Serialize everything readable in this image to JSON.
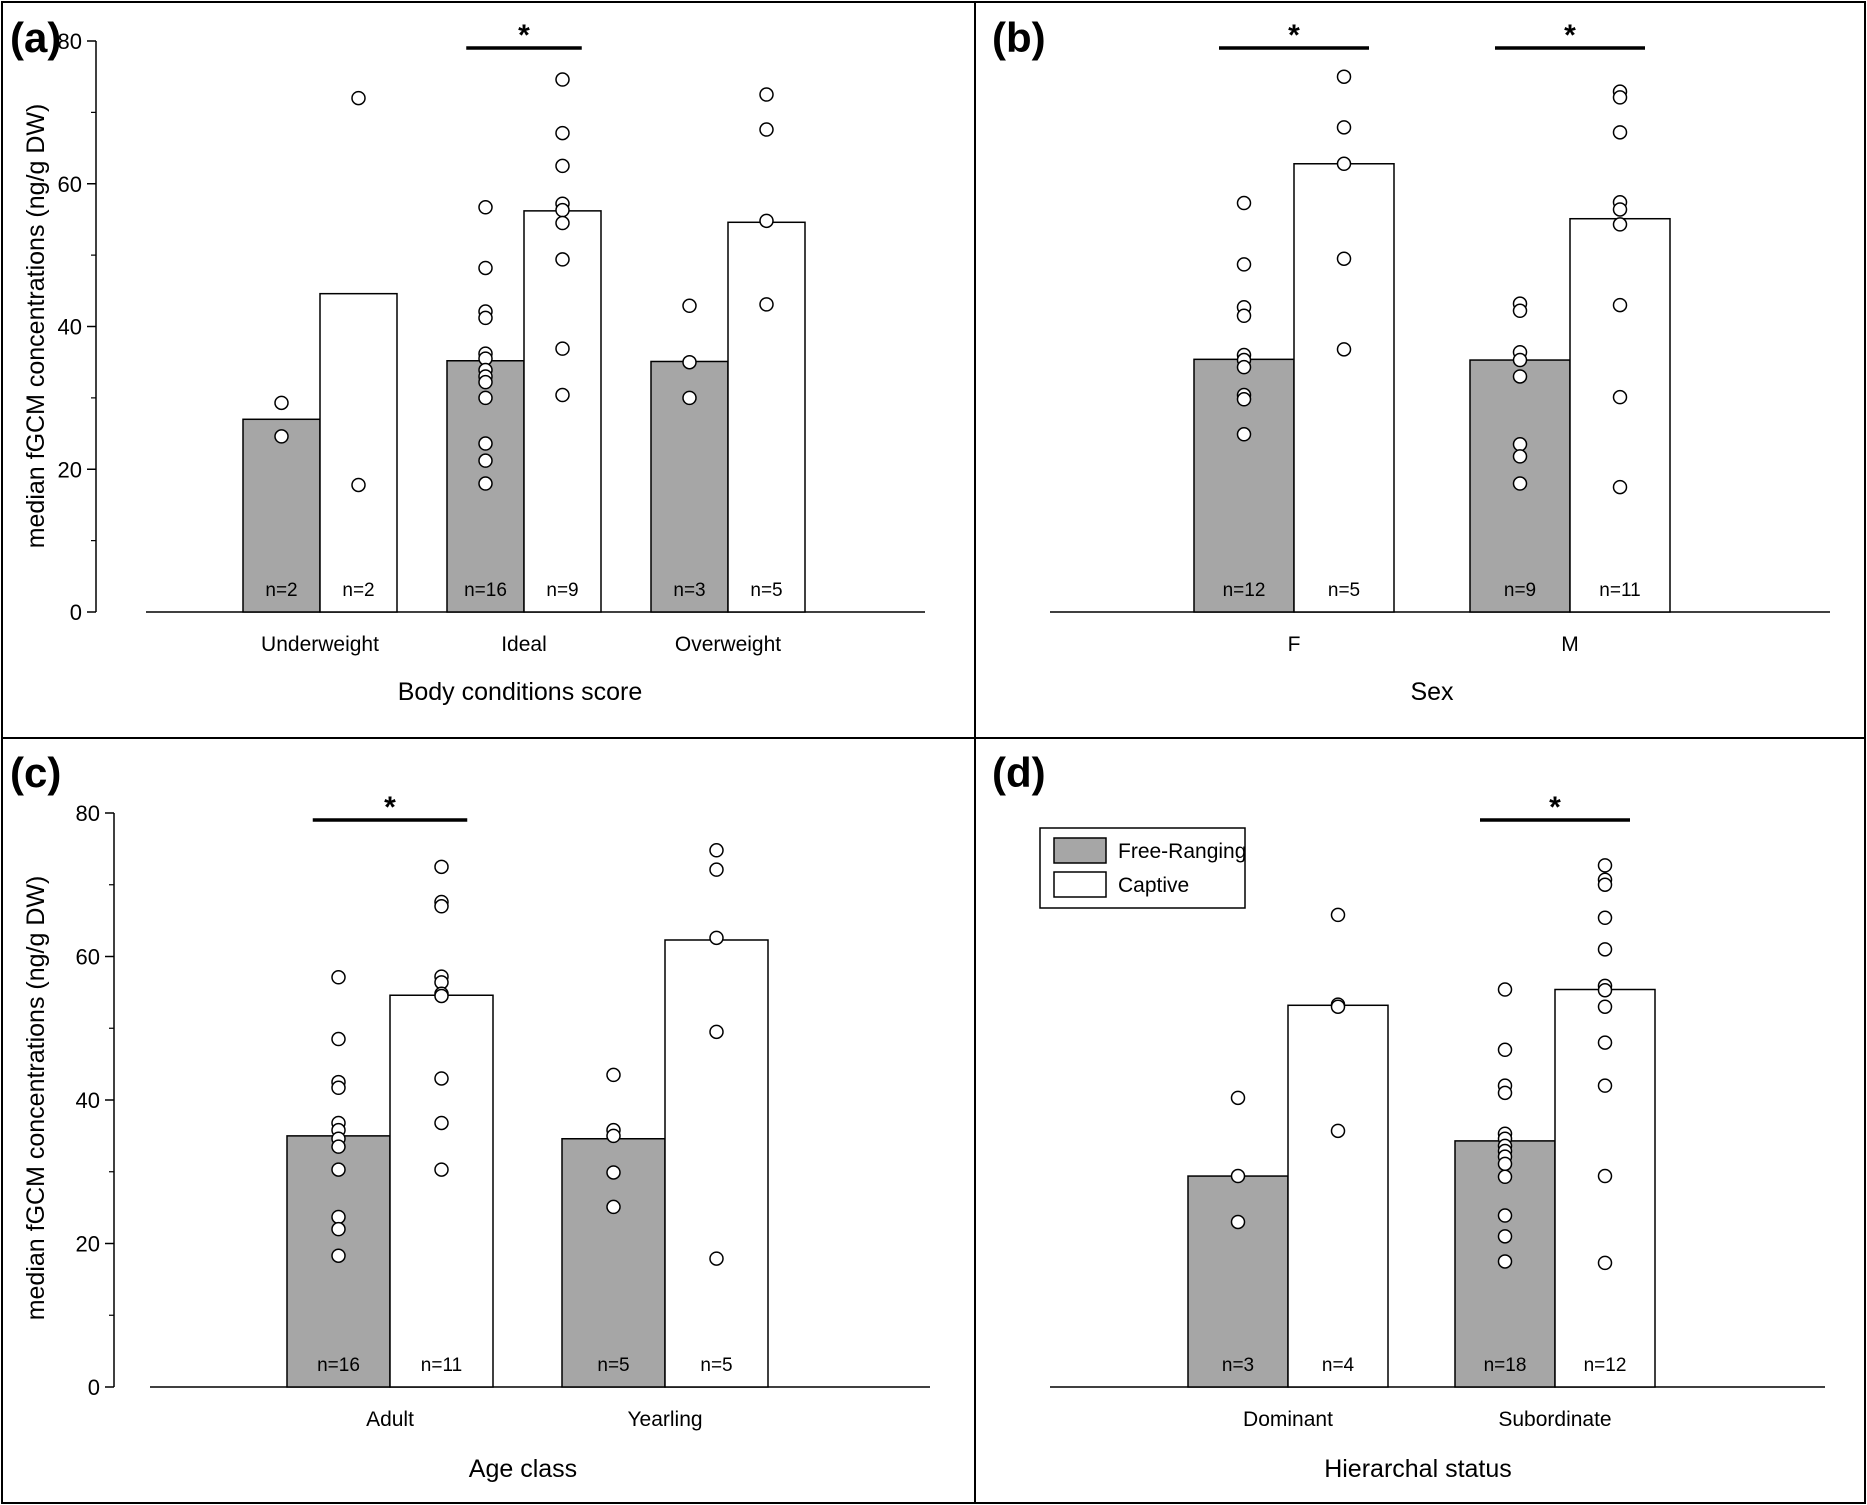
{
  "legend": {
    "items": [
      {
        "label": "Free-Ranging",
        "color": "#a6a6a6"
      },
      {
        "label": "Captive",
        "color": "#ffffff"
      }
    ],
    "position": "top-left of panel (d)"
  },
  "colors": {
    "free_ranging": "#a6a6a6",
    "captive": "#ffffff",
    "stroke": "#000000"
  },
  "chart_data": [
    {
      "panel": "(a)",
      "type": "bar",
      "xlabel": "Body conditions score",
      "ylabel": "median fGCM concentrations (ng/g DW)",
      "ylim": [
        0,
        80
      ],
      "yticks": [
        0,
        20,
        40,
        60,
        80
      ],
      "show_yaxis": true,
      "categories": [
        "Underweight",
        "Ideal",
        "Overweight"
      ],
      "series": [
        {
          "name": "Free-Ranging",
          "values": [
            27,
            35.2,
            35.1
          ],
          "n": [
            "n=2",
            "n=16",
            "n=3"
          ],
          "points": [
            [
              29.3,
              24.6
            ],
            [
              56.7,
              48.2,
              42.1,
              41.2,
              36.2,
              35.5,
              33.9,
              33.0,
              32.2,
              30.0,
              23.6,
              21.2,
              18.0
            ],
            [
              42.9,
              35.0,
              30.0
            ]
          ]
        },
        {
          "name": "Captive",
          "values": [
            44.6,
            56.2,
            54.6
          ],
          "n": [
            "n=2",
            "n=9",
            "n=5"
          ],
          "points": [
            [
              72.0,
              17.8
            ],
            [
              74.6,
              67.1,
              62.5,
              57.2,
              56.3,
              54.5,
              49.4,
              36.9,
              30.4
            ],
            [
              72.5,
              67.6,
              54.8,
              43.1
            ]
          ]
        }
      ],
      "significance": [
        {
          "category": "Ideal",
          "label": "*"
        }
      ]
    },
    {
      "panel": "(b)",
      "type": "bar",
      "xlabel": "Sex",
      "ylabel": "",
      "ylim": [
        0,
        80
      ],
      "yticks": [],
      "show_yaxis": false,
      "categories": [
        "F",
        "M"
      ],
      "series": [
        {
          "name": "Free-Ranging",
          "values": [
            35.4,
            35.3
          ],
          "n": [
            "n=12",
            "n=9"
          ],
          "points": [
            [
              57.3,
              48.7,
              42.7,
              41.5,
              36.0,
              35.3,
              34.3,
              30.4,
              29.8,
              24.9
            ],
            [
              43.2,
              42.2,
              36.4,
              35.3,
              33.0,
              23.5,
              21.8,
              18.0
            ]
          ]
        },
        {
          "name": "Captive",
          "values": [
            62.8,
            55.1
          ],
          "n": [
            "n=5",
            "n=11"
          ],
          "points": [
            [
              75.0,
              67.9,
              62.8,
              49.5,
              36.8
            ],
            [
              72.9,
              72.1,
              67.2,
              57.4,
              56.4,
              54.3,
              43.0,
              30.1,
              17.5
            ]
          ]
        }
      ],
      "significance": [
        {
          "category": "F",
          "label": "*"
        },
        {
          "category": "M",
          "label": "*"
        }
      ]
    },
    {
      "panel": "(c)",
      "type": "bar",
      "xlabel": "Age class",
      "ylabel": "median fGCM concentrations (ng/g DW)",
      "ylim": [
        0,
        80
      ],
      "yticks": [
        0,
        20,
        40,
        60,
        80
      ],
      "show_yaxis": true,
      "categories": [
        "Adult",
        "Yearling"
      ],
      "series": [
        {
          "name": "Free-Ranging",
          "values": [
            35.0,
            34.6
          ],
          "n": [
            "n=16",
            "n=5"
          ],
          "points": [
            [
              57.1,
              48.5,
              42.5,
              41.7,
              36.8,
              35.8,
              34.6,
              33.5,
              30.3,
              23.7,
              22.0,
              18.3
            ],
            [
              43.5,
              35.8,
              35.0,
              29.9,
              25.1
            ]
          ]
        },
        {
          "name": "Captive",
          "values": [
            54.6,
            62.3
          ],
          "n": [
            "n=11",
            "n=5"
          ],
          "points": [
            [
              72.5,
              67.6,
              67.0,
              57.2,
              56.4,
              54.8,
              54.5,
              43.0,
              36.8,
              30.3
            ],
            [
              74.8,
              72.1,
              62.6,
              49.5,
              17.9
            ]
          ]
        }
      ],
      "significance": [
        {
          "category": "Adult",
          "label": "*"
        }
      ]
    },
    {
      "panel": "(d)",
      "type": "bar",
      "xlabel": "Hierarchal status",
      "ylabel": "",
      "ylim": [
        0,
        80
      ],
      "yticks": [],
      "show_yaxis": false,
      "categories": [
        "Dominant",
        "Subordinate"
      ],
      "series": [
        {
          "name": "Free-Ranging",
          "values": [
            29.4,
            34.3
          ],
          "n": [
            "n=3",
            "n=18"
          ],
          "points": [
            [
              40.3,
              29.4,
              23.0
            ],
            [
              55.4,
              47.0,
              42.0,
              41.0,
              35.3,
              34.6,
              33.6,
              32.9,
              32.1,
              31.1,
              29.3,
              23.9,
              21.0,
              17.5
            ]
          ]
        },
        {
          "name": "Captive",
          "values": [
            53.2,
            55.4
          ],
          "n": [
            "n=4",
            "n=12"
          ],
          "points": [
            [
              65.8,
              53.3,
              53.0,
              35.7
            ],
            [
              72.7,
              70.7,
              70.0,
              65.4,
              61.0,
              55.9,
              55.3,
              53.0,
              48.0,
              42.0,
              29.4,
              17.3
            ]
          ]
        }
      ],
      "significance": [
        {
          "category": "Subordinate",
          "label": "*"
        }
      ]
    }
  ]
}
